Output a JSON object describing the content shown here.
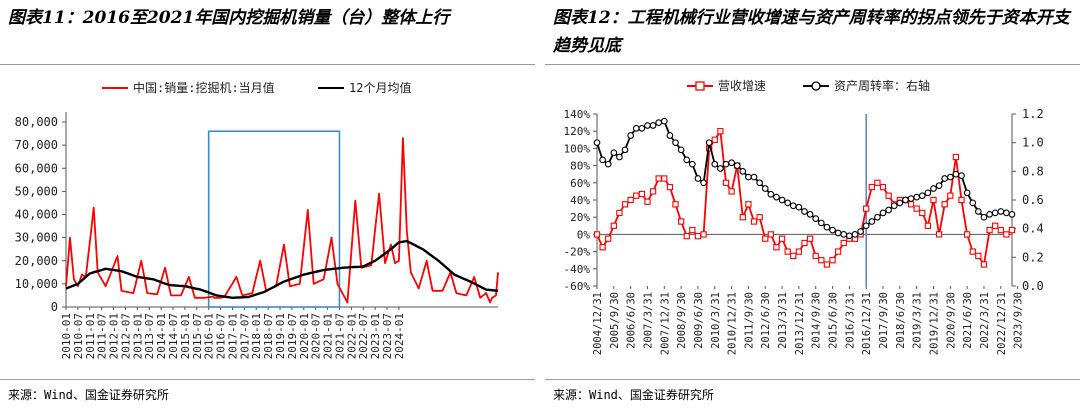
{
  "left": {
    "title": "图表11：2016至2021年国内挖掘机销量（台）整体上行",
    "source": "来源：Wind、国金证券研究所",
    "chart_data": {
      "type": "line",
      "x_labels": [
        "2010-01",
        "2010-07",
        "2011-01",
        "2011-07",
        "2012-01",
        "2012-07",
        "2013-01",
        "2013-07",
        "2014-01",
        "2014-07",
        "2015-01",
        "2015-07",
        "2016-01",
        "2016-07",
        "2017-01",
        "2017-07",
        "2018-01",
        "2018-07",
        "2019-01",
        "2019-07",
        "2020-01",
        "2020-07",
        "2021-01",
        "2021-07",
        "2022-01",
        "2022-07",
        "2023-01",
        "2023-07",
        "2024-01"
      ],
      "y_ticks": [
        "0",
        "10,000",
        "20,000",
        "30,000",
        "40,000",
        "50,000",
        "60,000",
        "70,000",
        "80,000"
      ],
      "ylim": [
        0,
        80000
      ],
      "series": [
        {
          "name": "中国:销量:挖掘机:当月值",
          "color": "#ff0000",
          "anchors": [
            [
              0,
              9000
            ],
            [
              2,
              30000
            ],
            [
              4,
              12000
            ],
            [
              6,
              9000
            ],
            [
              8,
              14000
            ],
            [
              10,
              13000
            ],
            [
              14,
              43000
            ],
            [
              16,
              15000
            ],
            [
              20,
              9000
            ],
            [
              26,
              22000
            ],
            [
              28,
              7000
            ],
            [
              34,
              6000
            ],
            [
              38,
              20000
            ],
            [
              41,
              6000
            ],
            [
              46,
              5500
            ],
            [
              50,
              17000
            ],
            [
              53,
              5000
            ],
            [
              58,
              5000
            ],
            [
              62,
              13000
            ],
            [
              65,
              4000
            ],
            [
              70,
              4000
            ],
            [
              74,
              4500
            ],
            [
              75,
              4000
            ],
            [
              78,
              4000
            ],
            [
              80,
              4500
            ],
            [
              86,
              13000
            ],
            [
              89,
              5000
            ],
            [
              94,
              6000
            ],
            [
              98,
              20000
            ],
            [
              101,
              7000
            ],
            [
              106,
              9000
            ],
            [
              110,
              27000
            ],
            [
              113,
              9000
            ],
            [
              118,
              10000
            ],
            [
              122,
              42000
            ],
            [
              125,
              10000
            ],
            [
              130,
              12000
            ],
            [
              134,
              30000
            ],
            [
              137,
              10000
            ],
            [
              142,
              2000
            ],
            [
              146,
              46000
            ],
            [
              149,
              17000
            ],
            [
              154,
              18000
            ],
            [
              158,
              49000
            ],
            [
              161,
              19000
            ],
            [
              164,
              27000
            ],
            [
              166,
              19000
            ],
            [
              168,
              20000
            ],
            [
              170,
              73000
            ],
            [
              172,
              33000
            ],
            [
              174,
              15000
            ],
            [
              178,
              8000
            ],
            [
              182,
              20000
            ],
            [
              185,
              7000
            ],
            [
              190,
              7000
            ],
            [
              194,
              15000
            ],
            [
              197,
              6000
            ],
            [
              202,
              5000
            ],
            [
              206,
              13000
            ],
            [
              209,
              4000
            ],
            [
              212,
              6000
            ],
            [
              214,
              2000
            ],
            [
              215,
              4000
            ],
            [
              217,
              5000
            ],
            [
              218,
              15000
            ]
          ]
        },
        {
          "name": "12个月均值",
          "color": "#000000",
          "anchors": [
            [
              0,
              8000
            ],
            [
              6,
              10000
            ],
            [
              12,
              14500
            ],
            [
              20,
              16500
            ],
            [
              28,
              15500
            ],
            [
              36,
              13000
            ],
            [
              44,
              12000
            ],
            [
              52,
              9500
            ],
            [
              60,
              9000
            ],
            [
              68,
              7500
            ],
            [
              76,
              5000
            ],
            [
              84,
              4000
            ],
            [
              92,
              4300
            ],
            [
              100,
              6500
            ],
            [
              110,
              11000
            ],
            [
              120,
              14000
            ],
            [
              130,
              16000
            ],
            [
              140,
              17000
            ],
            [
              150,
              17500
            ],
            [
              156,
              20000
            ],
            [
              164,
              25000
            ],
            [
              168,
              28000
            ],
            [
              172,
              28500
            ],
            [
              180,
              25000
            ],
            [
              188,
              20000
            ],
            [
              196,
              14000
            ],
            [
              204,
              11000
            ],
            [
              212,
              7500
            ],
            [
              218,
              7000
            ]
          ]
        }
      ],
      "highlight_box": {
        "x_start": 72,
        "x_end": 138,
        "y_top": 76000,
        "color": "#3a8ccc"
      }
    }
  },
  "right": {
    "title": "图表12：工程机械行业营收增速与资产周转率的拐点领先于资本开支趋势见底",
    "source": "来源：Wind、国金证券研究所",
    "chart_data": {
      "type": "line",
      "x_labels": [
        "2004/12/31",
        "2005/9/30",
        "2006/6/30",
        "2007/3/31",
        "2007/12/31",
        "2008/9/30",
        "2009/6/30",
        "2010/3/31",
        "2010/12/31",
        "2011/9/30",
        "2012/6/30",
        "2013/3/31",
        "2013/12/31",
        "2014/9/30",
        "2015/6/30",
        "2016/3/31",
        "2016/12/31",
        "2017/9/30",
        "2018/6/30",
        "2019/3/31",
        "2019/12/31",
        "2020/9/30",
        "2021/6/30",
        "2022/3/31",
        "2022/12/31",
        "2023/9/30"
      ],
      "y_left_ticks": [
        "-60%",
        "-40%",
        "-20%",
        "0%",
        "20%",
        "40%",
        "60%",
        "80%",
        "100%",
        "120%",
        "140%"
      ],
      "y_left_lim": [
        -60,
        140
      ],
      "y_right_ticks": [
        "0.0",
        "0.2",
        "0.4",
        "0.6",
        "0.8",
        "1.0",
        "1.2"
      ],
      "y_right_lim": [
        0,
        1.2
      ],
      "series": [
        {
          "name": "营收增速",
          "color": "#ff0000",
          "axis": "left",
          "anchors": [
            [
              0,
              0
            ],
            [
              1,
              -15
            ],
            [
              2,
              -5
            ],
            [
              3,
              10
            ],
            [
              4,
              25
            ],
            [
              5,
              35
            ],
            [
              6,
              40
            ],
            [
              7,
              45
            ],
            [
              8,
              47
            ],
            [
              9,
              38
            ],
            [
              10,
              50
            ],
            [
              11,
              65
            ],
            [
              12,
              65
            ],
            [
              13,
              55
            ],
            [
              14,
              35
            ],
            [
              15,
              15
            ],
            [
              16,
              -2
            ],
            [
              17,
              5
            ],
            [
              18,
              -2
            ],
            [
              19,
              0
            ],
            [
              20,
              100
            ],
            [
              21,
              110
            ],
            [
              22,
              120
            ],
            [
              23,
              60
            ],
            [
              24,
              50
            ],
            [
              25,
              80
            ],
            [
              26,
              20
            ],
            [
              27,
              35
            ],
            [
              28,
              15
            ],
            [
              29,
              20
            ],
            [
              30,
              -5
            ],
            [
              31,
              0
            ],
            [
              32,
              -15
            ],
            [
              33,
              -5
            ],
            [
              34,
              -20
            ],
            [
              35,
              -25
            ],
            [
              36,
              -20
            ],
            [
              37,
              -10
            ],
            [
              38,
              -5
            ],
            [
              39,
              -25
            ],
            [
              40,
              -30
            ],
            [
              41,
              -35
            ],
            [
              42,
              -30
            ],
            [
              43,
              -20
            ],
            [
              44,
              -10
            ],
            [
              45,
              -5
            ],
            [
              46,
              -5
            ],
            [
              47,
              0
            ],
            [
              48,
              30
            ],
            [
              49,
              55
            ],
            [
              50,
              60
            ],
            [
              51,
              55
            ],
            [
              52,
              45
            ],
            [
              53,
              35
            ],
            [
              54,
              40
            ],
            [
              55,
              40
            ],
            [
              56,
              35
            ],
            [
              57,
              30
            ],
            [
              58,
              25
            ],
            [
              59,
              10
            ],
            [
              60,
              40
            ],
            [
              61,
              0
            ],
            [
              62,
              35
            ],
            [
              63,
              45
            ],
            [
              64,
              90
            ],
            [
              65,
              40
            ],
            [
              66,
              0
            ],
            [
              67,
              -20
            ],
            [
              68,
              -25
            ],
            [
              69,
              -35
            ],
            [
              70,
              5
            ],
            [
              71,
              10
            ],
            [
              72,
              5
            ],
            [
              73,
              0
            ],
            [
              74,
              5
            ]
          ]
        },
        {
          "name": "资产周转率：右轴",
          "color": "#000000",
          "axis": "right",
          "anchors": [
            [
              0,
              1.0
            ],
            [
              1,
              0.88
            ],
            [
              2,
              0.85
            ],
            [
              3,
              0.93
            ],
            [
              4,
              0.9
            ],
            [
              5,
              0.95
            ],
            [
              6,
              1.05
            ],
            [
              7,
              1.1
            ],
            [
              8,
              1.1
            ],
            [
              9,
              1.12
            ],
            [
              10,
              1.12
            ],
            [
              11,
              1.14
            ],
            [
              12,
              1.15
            ],
            [
              13,
              1.05
            ],
            [
              14,
              1.0
            ],
            [
              15,
              0.95
            ],
            [
              16,
              0.88
            ],
            [
              17,
              0.85
            ],
            [
              18,
              0.75
            ],
            [
              19,
              0.72
            ],
            [
              20,
              1.0
            ],
            [
              21,
              0.85
            ],
            [
              22,
              0.82
            ],
            [
              23,
              0.85
            ],
            [
              24,
              0.86
            ],
            [
              25,
              0.84
            ],
            [
              26,
              0.8
            ],
            [
              27,
              0.76
            ],
            [
              28,
              0.76
            ],
            [
              29,
              0.72
            ],
            [
              30,
              0.68
            ],
            [
              31,
              0.64
            ],
            [
              32,
              0.62
            ],
            [
              33,
              0.6
            ],
            [
              34,
              0.58
            ],
            [
              35,
              0.56
            ],
            [
              36,
              0.55
            ],
            [
              37,
              0.52
            ],
            [
              38,
              0.5
            ],
            [
              39,
              0.47
            ],
            [
              40,
              0.44
            ],
            [
              41,
              0.41
            ],
            [
              42,
              0.39
            ],
            [
              43,
              0.37
            ],
            [
              44,
              0.36
            ],
            [
              45,
              0.35
            ],
            [
              46,
              0.36
            ],
            [
              47,
              0.38
            ],
            [
              48,
              0.42
            ],
            [
              49,
              0.45
            ],
            [
              50,
              0.48
            ],
            [
              51,
              0.51
            ],
            [
              52,
              0.53
            ],
            [
              53,
              0.56
            ],
            [
              54,
              0.58
            ],
            [
              55,
              0.6
            ],
            [
              56,
              0.61
            ],
            [
              57,
              0.62
            ],
            [
              58,
              0.63
            ],
            [
              59,
              0.65
            ],
            [
              60,
              0.68
            ],
            [
              61,
              0.7
            ],
            [
              62,
              0.75
            ],
            [
              63,
              0.76
            ],
            [
              64,
              0.78
            ],
            [
              65,
              0.77
            ],
            [
              66,
              0.65
            ],
            [
              67,
              0.58
            ],
            [
              68,
              0.52
            ],
            [
              69,
              0.48
            ],
            [
              70,
              0.5
            ],
            [
              71,
              0.51
            ],
            [
              72,
              0.52
            ],
            [
              73,
              0.51
            ],
            [
              74,
              0.5
            ]
          ]
        }
      ],
      "vline_index": 48,
      "vline_color": "#5a7fc4"
    }
  }
}
